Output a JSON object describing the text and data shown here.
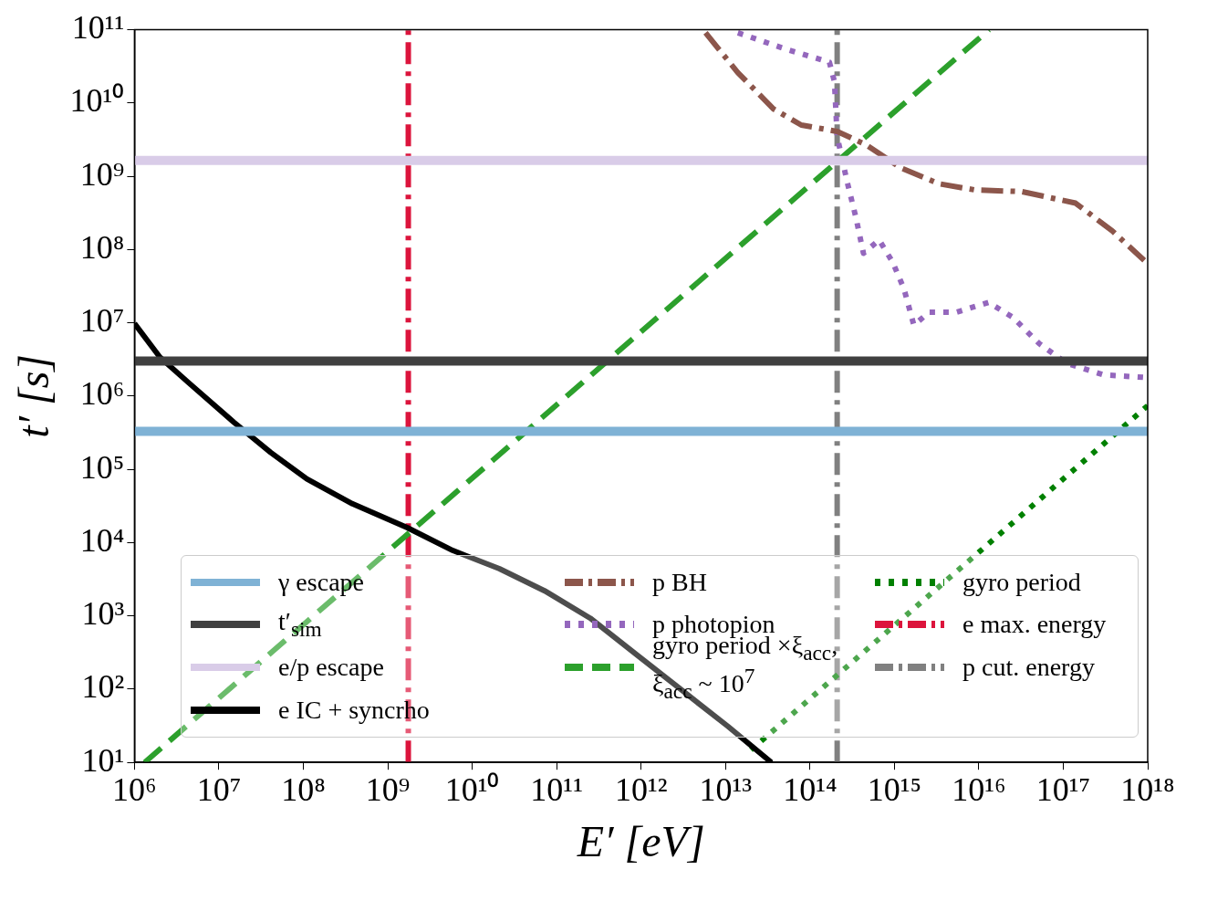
{
  "chart_data": {
    "type": "line",
    "xlabel": "E′ [eV]",
    "ylabel": "t′ [s]",
    "log": "xy",
    "grid": false,
    "legend": "bottom",
    "xlim": [
      1000000.0,
      1e+18
    ],
    "ylim": [
      10,
      100000000000.0
    ],
    "xticks": [
      {
        "value": 1000000.0,
        "label": "10⁶"
      },
      {
        "value": 10000000.0,
        "label": "10⁷"
      },
      {
        "value": 100000000.0,
        "label": "10⁸"
      },
      {
        "value": 1000000000.0,
        "label": "10⁹"
      },
      {
        "value": 10000000000.0,
        "label": "10¹⁰"
      },
      {
        "value": 100000000000.0,
        "label": "10¹¹"
      },
      {
        "value": 1000000000000.0,
        "label": "10¹²"
      },
      {
        "value": 10000000000000.0,
        "label": "10¹³"
      },
      {
        "value": 100000000000000.0,
        "label": "10¹⁴"
      },
      {
        "value": 1000000000000000.0,
        "label": "10¹⁵"
      },
      {
        "value": 1e+16,
        "label": "10¹⁶"
      },
      {
        "value": 1e+17,
        "label": "10¹⁷"
      },
      {
        "value": 1e+18,
        "label": "10¹⁸"
      }
    ],
    "yticks": [
      {
        "value": 10,
        "label": "10¹"
      },
      {
        "value": 100,
        "label": "10²"
      },
      {
        "value": 1000.0,
        "label": "10³"
      },
      {
        "value": 10000.0,
        "label": "10⁴"
      },
      {
        "value": 100000.0,
        "label": "10⁵"
      },
      {
        "value": 1000000.0,
        "label": "10⁶"
      },
      {
        "value": 10000000.0,
        "label": "10⁷"
      },
      {
        "value": 100000000.0,
        "label": "10⁸"
      },
      {
        "value": 1000000000.0,
        "label": "10⁹"
      },
      {
        "value": 10000000000.0,
        "label": "10¹⁰"
      },
      {
        "value": 100000000000.0,
        "label": "10¹¹"
      }
    ],
    "series": [
      {
        "name": "γ escape",
        "color": "#7fb2d5",
        "line_style": "solid",
        "x": [
          1000000.0,
          1e+18
        ],
        "values": [
          330000.0,
          330000.0
        ]
      },
      {
        "name": "t′$_{sim}$",
        "color": "#404040",
        "line_style": "solid",
        "x": [
          1000000.0,
          1e+18
        ],
        "values": [
          3000000.0,
          3000000.0
        ]
      },
      {
        "name": "e/p escape",
        "color": "#d9cce8",
        "line_style": "solid",
        "x": [
          1000000.0,
          1e+18
        ],
        "values": [
          1650000000.0,
          1650000000.0
        ]
      },
      {
        "name": "e IC + syncrho",
        "color": "#000000",
        "line_style": "solid",
        "x": [
          1000000.0,
          2000000.0,
          4300000.0,
          15000000.0,
          41000000.0,
          110000000.0,
          380000000.0,
          1700000000.0,
          5900000000.0,
          21000000000.0,
          72000000000.0,
          250000000000.0,
          870000000000.0,
          3100000000000.0,
          10700000000000.0,
          35000000000000.0
        ],
        "values": [
          9800000.0,
          3400000.0,
          1550000.0,
          440000.0,
          170000.0,
          74000.0,
          34000.0,
          16000.0,
          7800.0,
          4400.0,
          2200.0,
          930,
          300,
          95,
          31,
          10
        ]
      },
      {
        "name": "p BH",
        "color": "#8c564b",
        "line_style": "dashdot",
        "x": [
          5800000000000.0,
          14000000000000.0,
          37000000000000.0,
          79000000000000.0,
          210000000000000.0,
          460000000000000.0,
          1200000000000000.0,
          3400000000000000.0,
          9100000000000000.0,
          3.2e+16,
          1.4e+17,
          3.8e+17,
          9.1e+17
        ],
        "values": [
          91000000000.0,
          26000000000.0,
          8300000000.0,
          5000000000.0,
          4100000000.0,
          2700000000.0,
          1300000000.0,
          790000000.0,
          650000000.0,
          620000000.0,
          430000000.0,
          180000000.0,
          71000000.0
        ]
      },
      {
        "name": "p photopion",
        "color": "#9467bd",
        "line_style": "dotted",
        "x": [
          14000000000000.0,
          48000000000000.0,
          170000000000000.0,
          195000000000000.0,
          210000000000000.0,
          275000000000000.0,
          350000000000000.0,
          430000000000000.0,
          660000000000000.0,
          950000000000000.0,
          1300000000000000.0,
          1700000000000000.0,
          2600000000000000.0,
          5500000000000000.0,
          1.3e+16,
          2.5e+16,
          5.2e+16,
          1.1e+17,
          3e+17,
          9.1e+17
        ],
        "values": [
          91000000000.0,
          56000000000.0,
          36000000000.0,
          19500000000.0,
          3500000000.0,
          850000000.0,
          275000000.0,
          89000000.0,
          135000000.0,
          68000000.0,
          29000000.0,
          9300000.0,
          14000000.0,
          14000000.0,
          19000000.0,
          12000000.0,
          5200000.0,
          2800000.0,
          1950000.0,
          1800000.0
        ]
      },
      {
        "name": "gyro period ×ξ$_{acc}$, ξ$_{acc}$ ~ 10$^{7}$",
        "color": "#2ca02c",
        "line_style": "dashed",
        "x": [
          1320000.0,
          1.32e+16
        ],
        "values": [
          10,
          100000000000.0
        ]
      },
      {
        "name": "gyro period",
        "color": "#008000",
        "line_style": "dotted",
        "x": [
          20000000000000.0,
          1e+18
        ],
        "values": [
          14.8,
          740000.0
        ]
      },
      {
        "name": "e max. energy",
        "color": "#dc143c",
        "line_style": "dashdot",
        "x": [
          1750000000.0,
          1750000000.0
        ],
        "values": [
          10,
          100000000000.0
        ]
      },
      {
        "name": "p cut. energy",
        "color": "#808080",
        "line_style": "dashdot",
        "x": [
          210000000000000.0,
          210000000000000.0
        ],
        "values": [
          10,
          100000000000.0
        ]
      }
    ]
  }
}
